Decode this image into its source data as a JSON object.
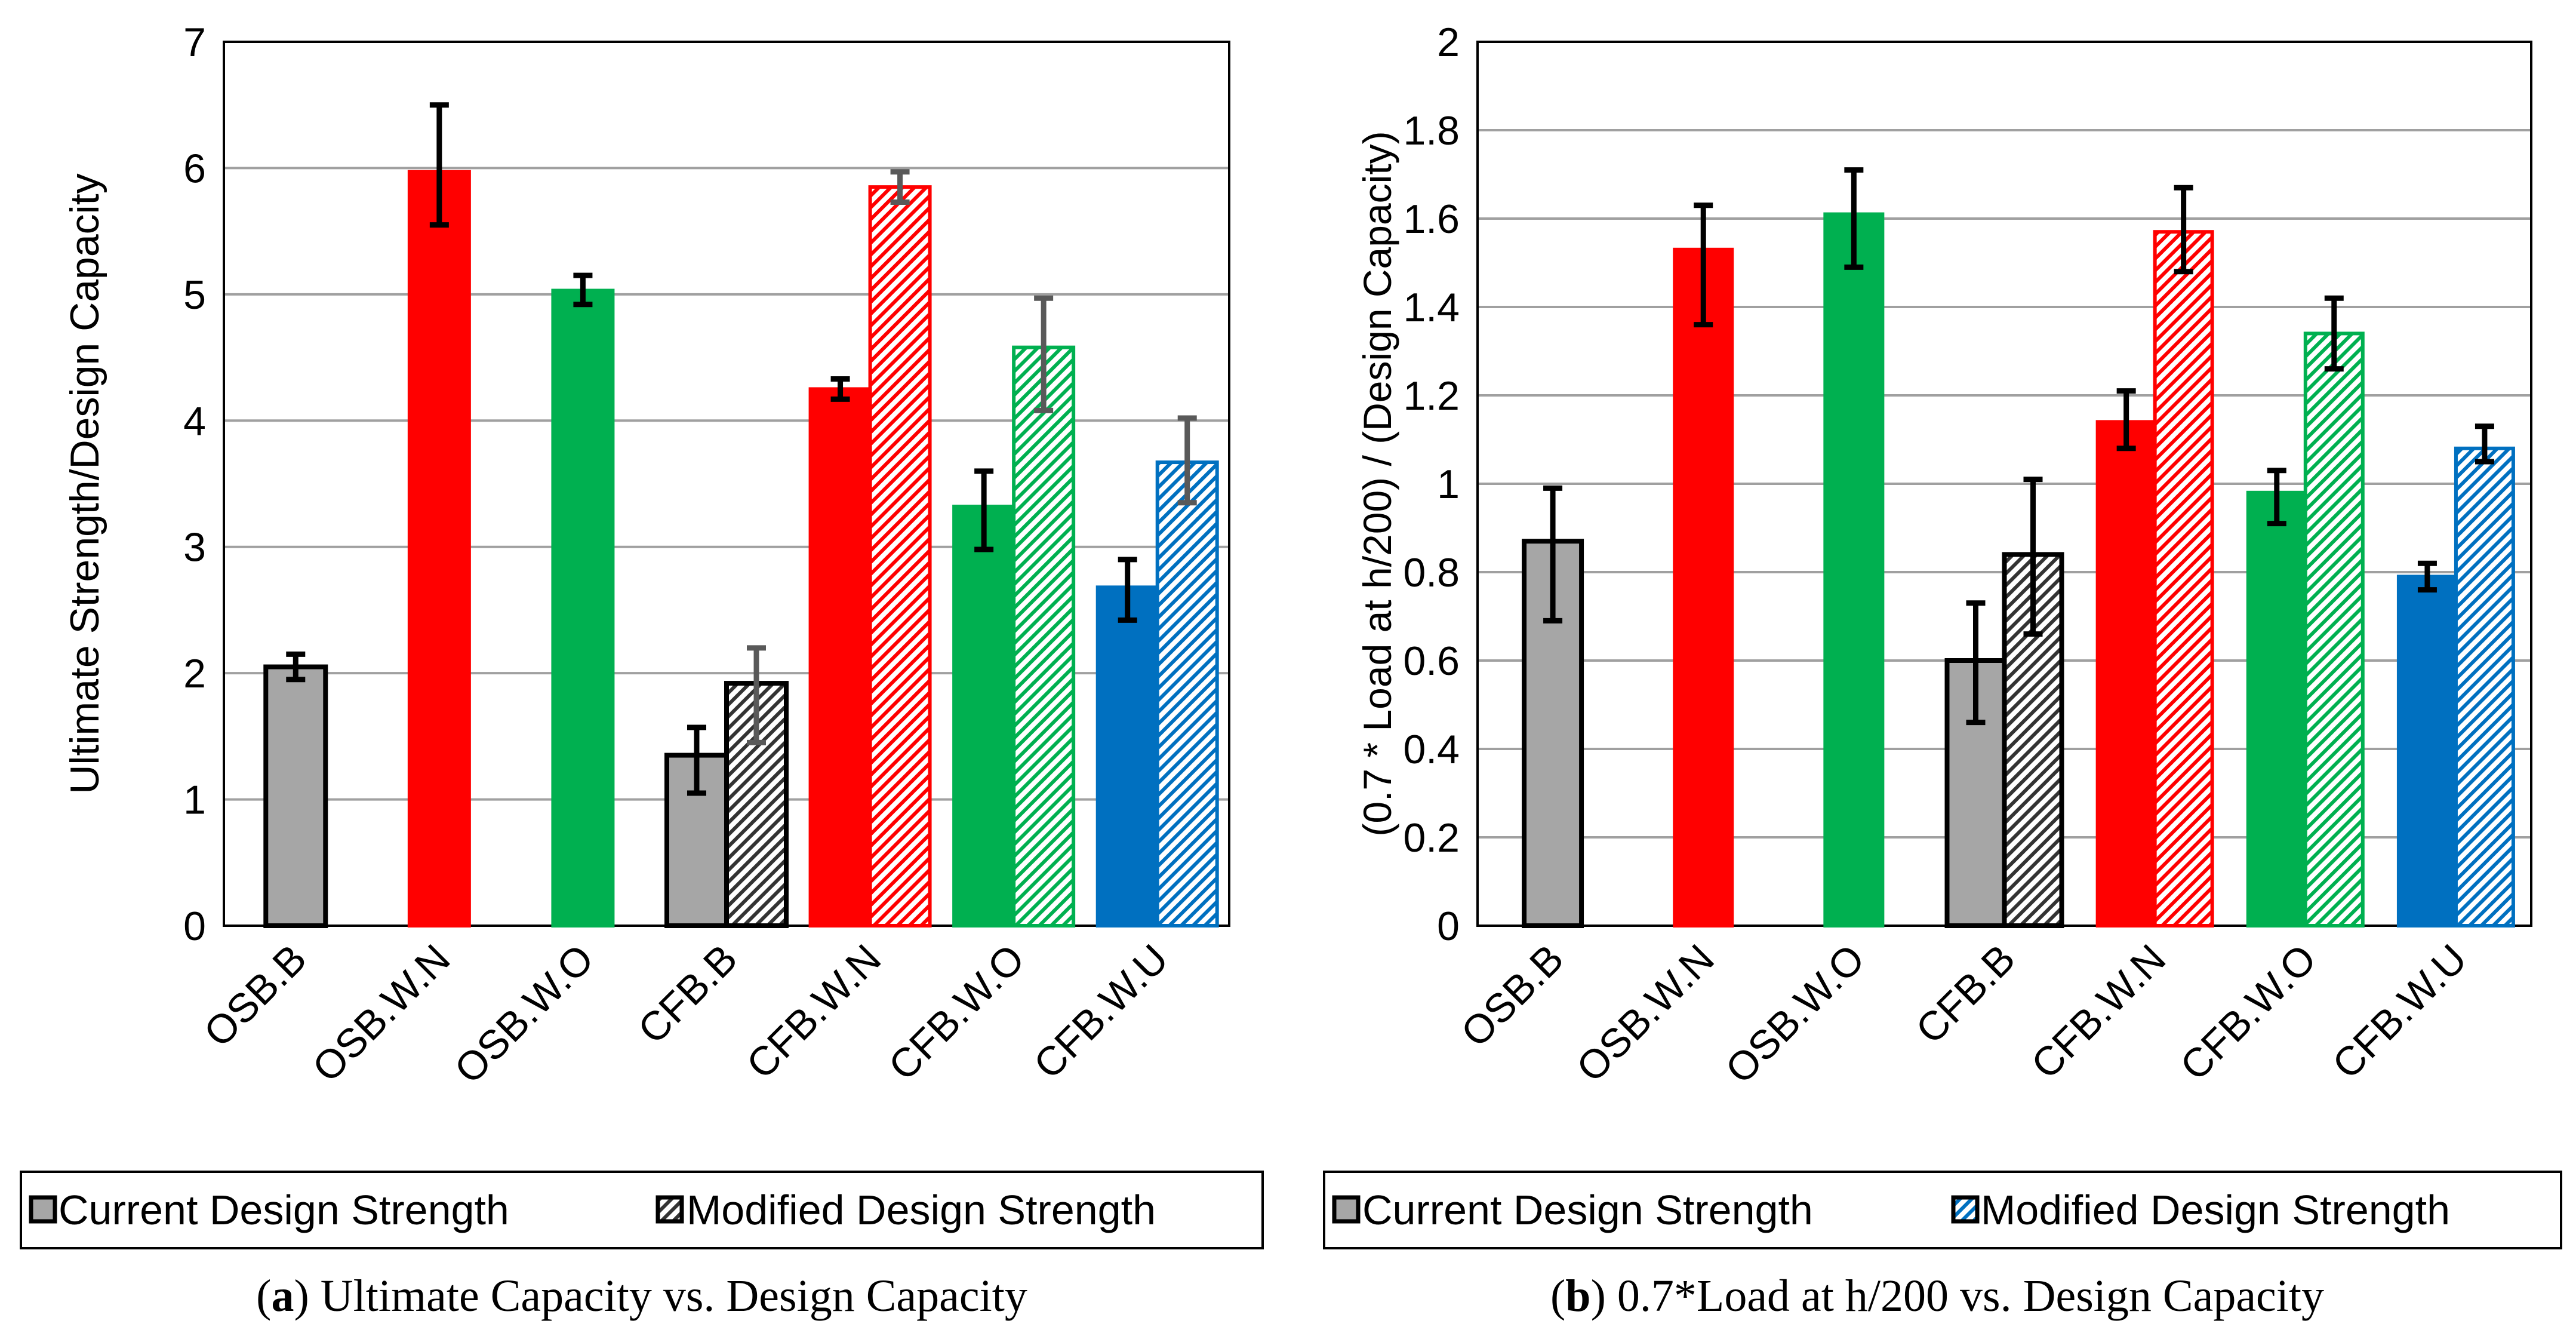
{
  "colors": {
    "gray": "#a6a6a6",
    "red": "#ff0000",
    "green": "#00b050",
    "blue": "#0070c0",
    "grid": "#a0a0a0",
    "axis": "#000000",
    "err_black": "#000000",
    "err_gray": "#595959"
  },
  "legend": {
    "current": "Current Design Strength",
    "modified": "Modified Design Strength"
  },
  "chart_data": [
    {
      "type": "bar",
      "panel": "a",
      "title": "",
      "xlabel": "",
      "ylabel": "Ultimate Strength/Design Capacity",
      "ylim": [
        0,
        7
      ],
      "yticks": [
        0,
        1,
        2,
        3,
        4,
        5,
        6,
        7
      ],
      "grid": true,
      "categories": [
        "OSB.B",
        "OSB.W.N",
        "OSB.W.O",
        "CFB.B",
        "CFB.W.N",
        "CFB.W.O",
        "CFB.W.U"
      ],
      "category_colors": [
        "gray",
        "red",
        "green",
        "gray",
        "red",
        "green",
        "blue"
      ],
      "series": [
        {
          "name": "Current Design Strength",
          "pattern": "solid",
          "values": [
            2.05,
            5.97,
            5.03,
            1.35,
            4.25,
            3.32,
            2.68
          ],
          "err_low": [
            1.95,
            5.55,
            4.92,
            1.05,
            4.17,
            2.98,
            2.42
          ],
          "err_high": [
            2.15,
            6.5,
            5.15,
            1.57,
            4.33,
            3.6,
            2.9
          ],
          "err_color": [
            "err_black",
            "err_black",
            "err_black",
            "err_black",
            "err_black",
            "err_black",
            "err_black"
          ]
        },
        {
          "name": "Modified Design Strength",
          "pattern": "hatched",
          "values": [
            null,
            null,
            null,
            1.92,
            5.85,
            4.58,
            3.67
          ],
          "err_low": [
            null,
            null,
            null,
            1.45,
            5.73,
            4.08,
            3.35
          ],
          "err_high": [
            null,
            null,
            null,
            2.2,
            5.97,
            4.97,
            4.02
          ],
          "err_color": [
            "err_gray",
            "err_gray",
            "err_gray",
            "err_gray",
            "err_gray",
            "err_gray",
            "err_gray"
          ]
        }
      ],
      "caption": {
        "letter": "a",
        "text": "Ultimate Capacity vs. Design Capacity"
      }
    },
    {
      "type": "bar",
      "panel": "b",
      "title": "",
      "xlabel": "",
      "ylabel": "(0.7 * Load at h/200) / (Design Capacity)",
      "ylim": [
        0,
        2
      ],
      "yticks": [
        0,
        0.2,
        0.4,
        0.6,
        0.8,
        1,
        1.2,
        1.4,
        1.6,
        1.8,
        2
      ],
      "grid": true,
      "categories": [
        "OSB.B",
        "OSB.W.N",
        "OSB.W.O",
        "CFB.B",
        "CFB.W.N",
        "CFB.W.O",
        "CFB.W.U"
      ],
      "category_colors": [
        "gray",
        "red",
        "green",
        "gray",
        "red",
        "green",
        "blue"
      ],
      "series": [
        {
          "name": "Current Design Strength",
          "pattern": "solid",
          "values": [
            0.87,
            1.53,
            1.61,
            0.6,
            1.14,
            0.98,
            0.79
          ],
          "err_low": [
            0.69,
            1.36,
            1.49,
            0.46,
            1.08,
            0.91,
            0.76
          ],
          "err_high": [
            0.99,
            1.63,
            1.71,
            0.73,
            1.21,
            1.03,
            0.82
          ],
          "err_color": [
            "err_black",
            "err_black",
            "err_black",
            "err_black",
            "err_black",
            "err_black",
            "err_black"
          ]
        },
        {
          "name": "Modified Design Strength",
          "pattern": "hatched",
          "values": [
            null,
            null,
            null,
            0.84,
            1.57,
            1.34,
            1.08
          ],
          "err_low": [
            null,
            null,
            null,
            0.66,
            1.48,
            1.26,
            1.05
          ],
          "err_high": [
            null,
            null,
            null,
            1.01,
            1.67,
            1.42,
            1.13
          ],
          "err_color": [
            "err_black",
            "err_black",
            "err_black",
            "err_black",
            "err_black",
            "err_black",
            "err_black"
          ]
        }
      ],
      "caption": {
        "letter": "b",
        "text": "0.7*Load at h/200 vs. Design Capacity"
      }
    }
  ]
}
